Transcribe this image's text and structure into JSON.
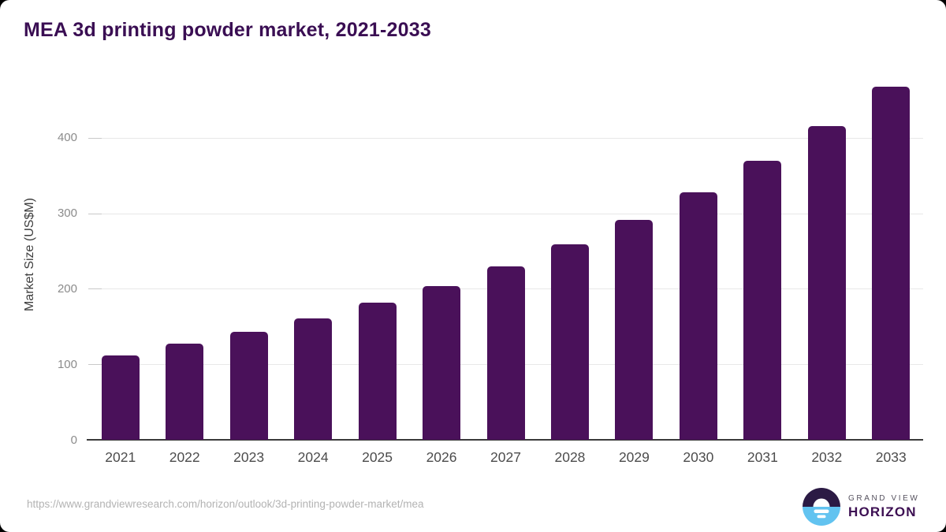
{
  "title": "MEA 3d printing powder market, 2021-2033",
  "chart_data": {
    "type": "bar",
    "title": "MEA 3d printing powder market, 2021-2033",
    "categories": [
      "2021",
      "2022",
      "2023",
      "2024",
      "2025",
      "2026",
      "2027",
      "2028",
      "2029",
      "2030",
      "2031",
      "2032",
      "2033"
    ],
    "values": [
      112,
      127,
      143,
      161,
      182,
      204,
      230,
      259,
      291,
      328,
      369,
      415,
      468
    ],
    "xlabel": "",
    "ylabel": "Market Size (US$M)",
    "ylim": [
      0,
      478
    ],
    "yticks": [
      0,
      100,
      200,
      300,
      400
    ],
    "grid": "horizontal",
    "legend_position": "none",
    "bar_color": "#4a115a"
  },
  "colors": {
    "title": "#3a0e53",
    "bar": "#4a115a",
    "gridline": "#e8e8e8",
    "axis_line": "#3a3a3a",
    "ytick_text": "#8b8b8b",
    "xtick_text": "#4c4c4c",
    "logo_dark_half": "#2b1a44",
    "logo_blue_half": "#62c3f0"
  },
  "footer": {
    "source_url": "https://www.grandviewresearch.com/horizon/outlook/3d-printing-powder-market/mea",
    "logo_line1": "GRAND VIEW",
    "logo_line2": "HORIZON"
  }
}
